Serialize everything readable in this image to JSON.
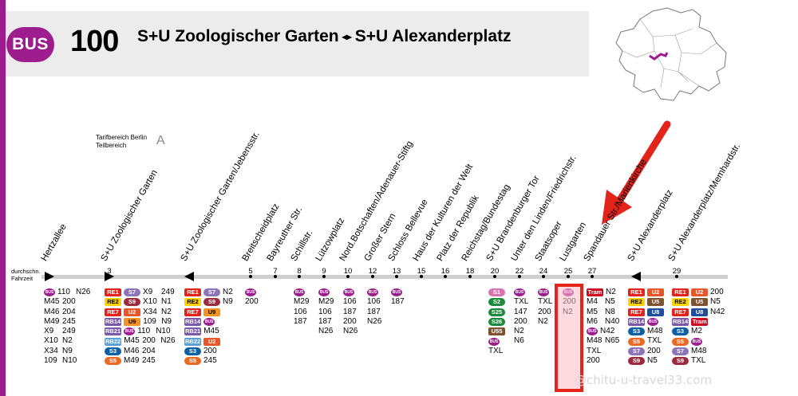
{
  "header": {
    "badge": "BUS",
    "line_number": "100",
    "from": "S+U Zoologischer Garten",
    "arrow": "◂▸",
    "to": "S+U Alexanderplatz"
  },
  "tarif": {
    "label": "Tarifbereich Berlin Teilbereich",
    "zone": "A"
  },
  "timing_label": "durchschn. Fahrzeit",
  "colors": {
    "bus": "#9d1d8f",
    "highlight": "#e3241b"
  },
  "stops": [
    {
      "name": "Hertzallee",
      "min": "",
      "marker": "start"
    },
    {
      "name": "S+U Zoologischer Garten",
      "min": "3",
      "marker": "right"
    },
    {
      "name": "S+U Zoologischer Garten/Jebensstr.",
      "min": "",
      "marker": "left"
    },
    {
      "name": "Breitscheidplatz",
      "min": "5",
      "marker": "dot"
    },
    {
      "name": "Bayreuther Str.",
      "min": "7",
      "marker": "dot"
    },
    {
      "name": "Schillstr.",
      "min": "8",
      "marker": "dot"
    },
    {
      "name": "Lützowplatz",
      "min": "9",
      "marker": "dot"
    },
    {
      "name": "Nord.Botschaften/Adenauer-Stiftg",
      "min": "10",
      "marker": "dot"
    },
    {
      "name": "Großer Stern",
      "min": "12",
      "marker": "dot"
    },
    {
      "name": "Schloss Bellevue",
      "min": "13",
      "marker": "dot"
    },
    {
      "name": "Haus der Kulturen der Welt",
      "min": "15",
      "marker": "dot"
    },
    {
      "name": "Platz der Republik",
      "min": "16",
      "marker": "dot"
    },
    {
      "name": "Reichstag/Bundestag",
      "min": "18",
      "marker": "dot"
    },
    {
      "name": "S+U Brandenburger Tor",
      "min": "20",
      "marker": "dot"
    },
    {
      "name": "Unter den Linden/Friedrichstr.",
      "min": "22",
      "marker": "dot"
    },
    {
      "name": "Staatsoper",
      "min": "24",
      "marker": "dot"
    },
    {
      "name": "Lustgarten",
      "min": "25",
      "marker": "dot"
    },
    {
      "name": "Spandauer Str./Marienkirche",
      "min": "27",
      "marker": "dot"
    },
    {
      "name": "S+U Alexanderplatz",
      "min": "",
      "marker": "left"
    },
    {
      "name": "S+U Alexanderplatz/Memhardstr.",
      "min": "29",
      "marker": "dot"
    }
  ],
  "connections": {
    "hertzallee": [
      [
        "BUS",
        "110",
        "N26"
      ],
      [
        "M45",
        "200"
      ],
      [
        "M46",
        "204"
      ],
      [
        "M49",
        "245"
      ],
      [
        "X9",
        "249"
      ],
      [
        "X10",
        "N2"
      ],
      [
        "X34",
        "N9"
      ],
      [
        "109",
        "N10"
      ]
    ],
    "zoo": [
      [
        "RE1",
        "S7",
        "X9",
        "249"
      ],
      [
        "RE2",
        "S9",
        "X10",
        "N1"
      ],
      [
        "RE7",
        "U2",
        "X34",
        "N2"
      ],
      [
        "RB14",
        "U9",
        "109",
        "N9"
      ],
      [
        "RB21",
        "BUS",
        "110",
        "N10"
      ],
      [
        "RB22",
        "M45",
        "200",
        "N26"
      ],
      [
        "S3",
        "M46",
        "204"
      ],
      [
        "S5",
        "M49",
        "245"
      ]
    ],
    "jebens": [
      [
        "RE1",
        "S7",
        "N2"
      ],
      [
        "RE2",
        "S9",
        "N9"
      ],
      [
        "RE7",
        "U9"
      ],
      [
        "RB14",
        "BUS"
      ],
      [
        "RB21",
        "M45"
      ],
      [
        "RB22",
        "U2"
      ],
      [
        "S3",
        "200"
      ],
      [
        "S5",
        "245"
      ]
    ],
    "breitscheid": [
      [
        "BUS"
      ],
      [
        "200"
      ]
    ],
    "schill": [
      [
        "BUS"
      ],
      [
        "M29"
      ],
      [
        "106"
      ],
      [
        "187"
      ]
    ],
    "luetzow": [
      [
        "BUS"
      ],
      [
        "M29"
      ],
      [
        "106"
      ],
      [
        "187"
      ],
      [
        "N26"
      ]
    ],
    "nordbot": [
      [
        "BUS"
      ],
      [
        "106"
      ],
      [
        "187"
      ],
      [
        "200"
      ],
      [
        "N26"
      ]
    ],
    "grstern": [
      [
        "BUS"
      ],
      [
        "106"
      ],
      [
        "187"
      ],
      [
        "N26"
      ]
    ],
    "bellevue": [
      [
        "BUS"
      ],
      [
        "187"
      ]
    ],
    "brandenburg": [
      [
        "S1"
      ],
      [
        "S2"
      ],
      [
        "S25"
      ],
      [
        "S26"
      ],
      [
        "U55"
      ],
      [
        "BUS"
      ],
      [
        "TXL"
      ]
    ],
    "unterlinden": [
      [
        "BUS"
      ],
      [
        "TXL"
      ],
      [
        "147"
      ],
      [
        "200"
      ],
      [
        "N2"
      ],
      [
        "N6"
      ]
    ],
    "staatsoper": [
      [
        "BUS"
      ],
      [
        "TXL"
      ],
      [
        "200"
      ],
      [
        "N2"
      ]
    ],
    "lustgarten": [
      [
        "BUS"
      ],
      [
        "200"
      ],
      [
        "N2"
      ]
    ],
    "spandauer": [
      [
        "Tram",
        "N2"
      ],
      [
        "M4",
        "N5"
      ],
      [
        "M5",
        "N8"
      ],
      [
        "M6",
        "N40"
      ],
      [
        "BUS",
        "N42"
      ],
      [
        "M48",
        "N65"
      ],
      [
        "TXL"
      ],
      [
        "200"
      ]
    ],
    "alex": [
      [
        "RE1",
        "U2"
      ],
      [
        "RE2",
        "U5"
      ],
      [
        "RE7",
        "U8"
      ],
      [
        "RB14",
        "BUS"
      ],
      [
        "S3",
        "M48"
      ],
      [
        "S5",
        "TXL"
      ],
      [
        "S7",
        "200"
      ],
      [
        "S9",
        "N5"
      ]
    ],
    "memhard": [
      [
        "RE1",
        "U2",
        "200"
      ],
      [
        "RE2",
        "U5",
        "N5"
      ],
      [
        "RE7",
        "U8",
        "N42"
      ],
      [
        "RB14",
        "Tram"
      ],
      [
        "S3",
        "M2"
      ],
      [
        "S5",
        "BUS"
      ],
      [
        "S7",
        "M48"
      ],
      [
        "S9",
        "TXL"
      ]
    ]
  },
  "watermark": "@chitu-u-travel33.com"
}
